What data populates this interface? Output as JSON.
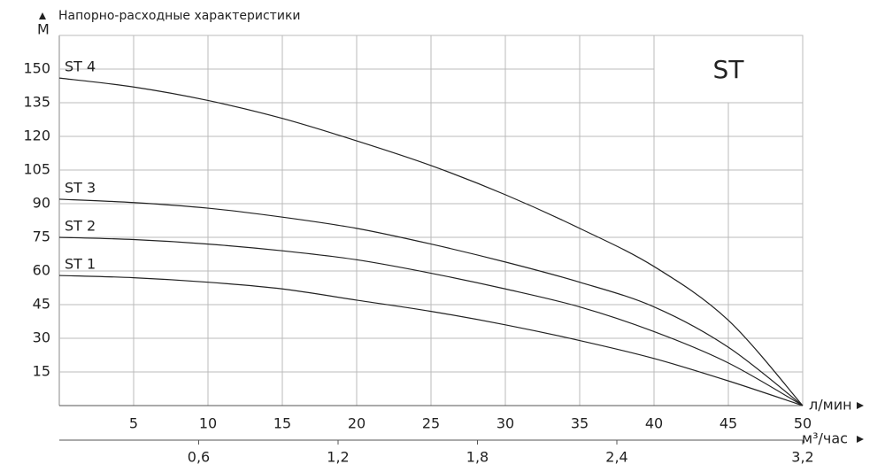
{
  "chart_data": {
    "type": "line",
    "title": "Напорно-расходные характеристики",
    "y_label": "М",
    "x_label": "л/мин",
    "x2_label": "м³/час",
    "box_label": "ST",
    "x": [
      0,
      5,
      10,
      15,
      20,
      25,
      30,
      35,
      40,
      45,
      50
    ],
    "series": [
      {
        "name": "ST 4",
        "color": "#222222",
        "values": [
          146,
          142,
          136,
          128,
          118,
          107,
          94,
          79,
          62,
          38,
          0
        ]
      },
      {
        "name": "ST 3",
        "color": "#222222",
        "values": [
          92,
          90.5,
          88,
          84,
          79,
          72,
          64,
          55,
          44,
          26,
          0
        ]
      },
      {
        "name": "ST 2",
        "color": "#222222",
        "values": [
          75,
          74,
          72,
          69,
          65,
          59,
          52,
          44,
          33,
          19,
          0
        ]
      },
      {
        "name": "ST 1",
        "color": "#222222",
        "values": [
          58,
          57,
          55,
          52,
          47,
          42,
          36,
          29,
          21,
          11,
          0
        ]
      }
    ],
    "xlim": [
      0,
      50
    ],
    "xticks": [
      5,
      10,
      15,
      20,
      25,
      30,
      35,
      40,
      45,
      50
    ],
    "x2lim": [
      0,
      3.2
    ],
    "x2ticks": [
      {
        "value": 0.6,
        "label": "0,6"
      },
      {
        "value": 1.2,
        "label": "1,2"
      },
      {
        "value": 1.8,
        "label": "1,8"
      },
      {
        "value": 2.4,
        "label": "2,4"
      },
      {
        "value": 3.2,
        "label": "3,2"
      }
    ],
    "ylim": [
      0,
      165
    ],
    "yticks": [
      15,
      30,
      45,
      60,
      75,
      90,
      105,
      120,
      135,
      150
    ],
    "grid": true
  }
}
